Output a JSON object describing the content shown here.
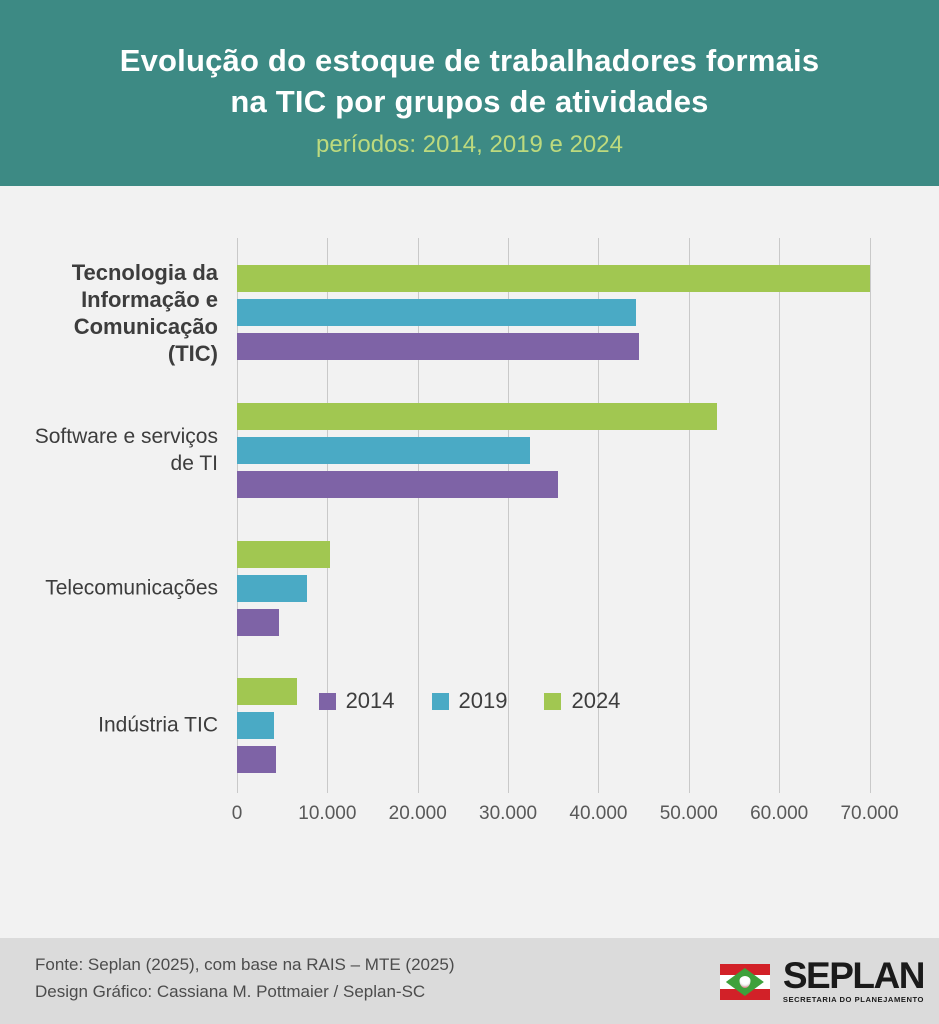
{
  "header": {
    "title_line1": "Evolução do estoque de trabalhadores formais",
    "title_line2": "na TIC por grupos de atividades",
    "subtitle": "períodos: 2014, 2019 e 2024"
  },
  "chart_data": {
    "type": "bar",
    "orientation": "horizontal",
    "title": "Evolução do estoque de trabalhadores formais na TIC por grupos de atividades",
    "subtitle": "períodos: 2014, 2019 e 2024",
    "categories": [
      "Tecnologia da Informação e Comunicação (TIC)",
      "Software e serviços de TI",
      "Telecomunicações",
      "Indústria TIC"
    ],
    "series": [
      {
        "name": "2014",
        "color": "#7e63a6",
        "values": [
          44500,
          35500,
          4700,
          4300
        ]
      },
      {
        "name": "2019",
        "color": "#4aaac5",
        "values": [
          44200,
          32400,
          7700,
          4100
        ]
      },
      {
        "name": "2024",
        "color": "#a1c751",
        "values": [
          70000,
          53100,
          10300,
          6600
        ]
      }
    ],
    "bar_order_top_to_bottom": [
      "2024",
      "2019",
      "2014"
    ],
    "xlim": [
      0,
      70000
    ],
    "x_ticks": [
      "0",
      "10.000",
      "20.000",
      "30.000",
      "40.000",
      "50.000",
      "60.000",
      "70.000"
    ],
    "grid": true,
    "legend_position": "bottom"
  },
  "footer": {
    "source_line1": "Fonte: Seplan (2025), com base na RAIS – MTE (2025)",
    "source_line2": "Design Gráfico: Cassiana M. Pottmaier / Seplan-SC",
    "logo_text": "SEPLAN",
    "logo_subtext": "SECRETARIA DO PLANEJAMENTO"
  },
  "colors": {
    "header_background": "#3d8a84",
    "title_text": "#ffffff",
    "subtitle_text": "#bdda7e",
    "chart_background": "#f2f2f2",
    "gridline": "#c9c9c9",
    "bar_2014": "#7e63a6",
    "bar_2019": "#4aaac5",
    "bar_2024": "#a1c751",
    "footer_background": "#dbdbdb",
    "flag_red": "#d22128",
    "flag_green": "#3ea13b"
  }
}
